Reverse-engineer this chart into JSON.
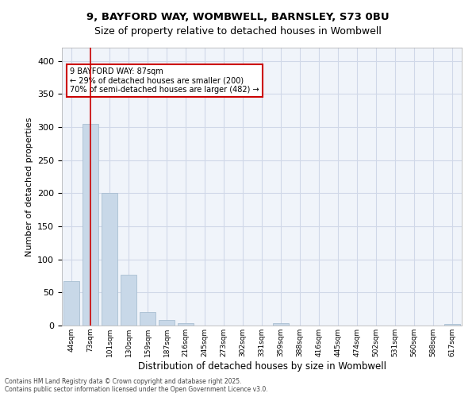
{
  "title1": "9, BAYFORD WAY, WOMBWELL, BARNSLEY, S73 0BU",
  "title2": "Size of property relative to detached houses in Wombwell",
  "xlabel": "Distribution of detached houses by size in Wombwell",
  "ylabel": "Number of detached properties",
  "categories": [
    "44sqm",
    "73sqm",
    "101sqm",
    "130sqm",
    "159sqm",
    "187sqm",
    "216sqm",
    "245sqm",
    "273sqm",
    "302sqm",
    "331sqm",
    "359sqm",
    "388sqm",
    "416sqm",
    "445sqm",
    "474sqm",
    "502sqm",
    "531sqm",
    "560sqm",
    "588sqm",
    "617sqm"
  ],
  "values": [
    67,
    305,
    200,
    77,
    20,
    8,
    4,
    0,
    0,
    0,
    0,
    4,
    0,
    0,
    0,
    0,
    0,
    0,
    0,
    0,
    2
  ],
  "bar_color": "#c8d8e8",
  "bar_edge_color": "#a0b8cc",
  "grid_color": "#d0d8e8",
  "background_color": "#f0f4fa",
  "vline_x_index": 1,
  "vline_color": "#cc0000",
  "annotation_box_text": "9 BAYFORD WAY: 87sqm\n← 29% of detached houses are smaller (200)\n70% of semi-detached houses are larger (482) →",
  "annotation_box_color": "#cc0000",
  "footer_text": "Contains HM Land Registry data © Crown copyright and database right 2025.\nContains public sector information licensed under the Open Government Licence v3.0.",
  "ylim": [
    0,
    420
  ],
  "yticks": [
    0,
    50,
    100,
    150,
    200,
    250,
    300,
    350,
    400
  ]
}
